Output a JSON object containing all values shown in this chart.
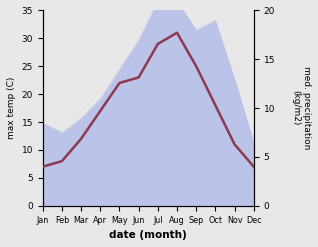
{
  "months": [
    "Jan",
    "Feb",
    "Mar",
    "Apr",
    "May",
    "Jun",
    "Jul",
    "Aug",
    "Sep",
    "Oct",
    "Nov",
    "Dec"
  ],
  "max_temp": [
    7,
    8,
    12,
    17,
    22,
    23,
    29,
    31,
    25,
    18,
    11,
    7
  ],
  "precipitation": [
    8.5,
    7.5,
    9,
    11,
    14,
    17,
    21,
    21,
    18,
    19,
    13,
    6.5
  ],
  "temp_color": "#8B3A52",
  "precip_color": "#aab4e8",
  "precip_fill_alpha": 0.7,
  "ylabel_left": "max temp (C)",
  "ylabel_right": "med. precipitation\n(kg/m2)",
  "xlabel": "date (month)",
  "ylim_left": [
    0,
    35
  ],
  "ylim_right": [
    0,
    20
  ],
  "yticks_left": [
    0,
    5,
    10,
    15,
    20,
    25,
    30,
    35
  ],
  "yticks_right": [
    0,
    5,
    10,
    15,
    20
  ],
  "bg_color": "#ffffff",
  "line_width": 1.8,
  "fig_bg": "#e8e8e8"
}
